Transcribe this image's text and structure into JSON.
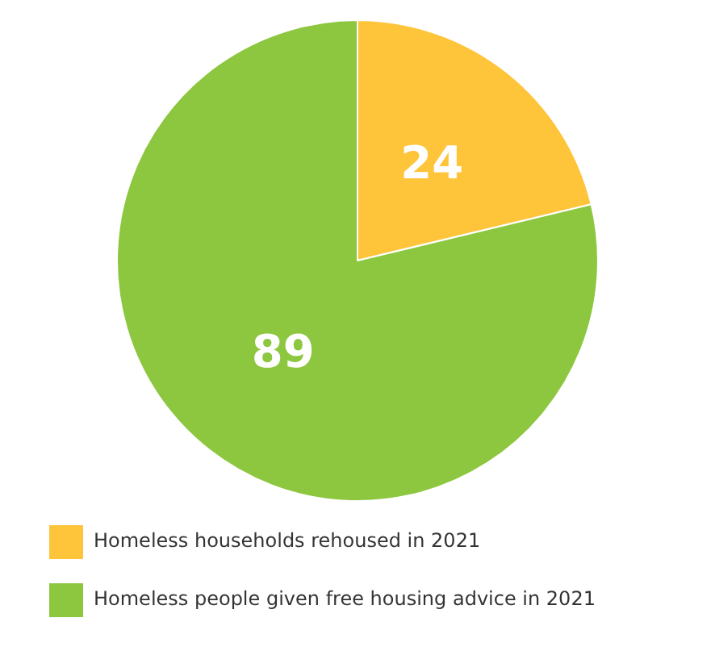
{
  "chart_data": {
    "type": "pie",
    "categories": [
      "Homeless households rehoused in 2021",
      "Homeless people given free housing advice in 2021"
    ],
    "values": [
      24,
      89
    ],
    "colors": [
      "#fec43a",
      "#8dc63f"
    ],
    "data_labels": true,
    "legend": "bottom"
  }
}
